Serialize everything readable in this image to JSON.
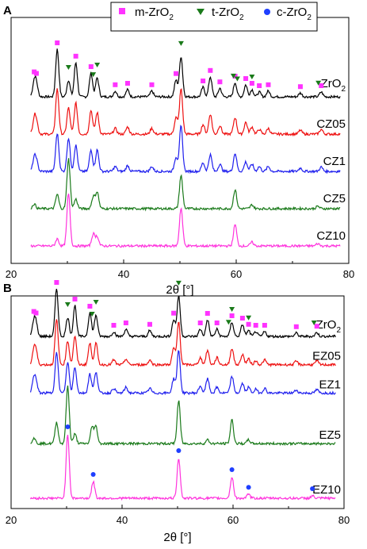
{
  "legend": [
    {
      "label": "m-ZrO",
      "sub": "2",
      "marker": "square",
      "color": "#ff33ff"
    },
    {
      "label": "t-ZrO",
      "sub": "2",
      "marker": "triangle-down",
      "color": "#1a7a1a"
    },
    {
      "label": "c-ZrO",
      "sub": "2",
      "marker": "circle",
      "color": "#1f3fff"
    }
  ],
  "chart_data": [
    {
      "panel": "A",
      "type": "line",
      "xlabel": "2θ [°]",
      "xlim": [
        20,
        80
      ],
      "xticks": [
        20,
        40,
        60,
        80
      ],
      "series": [
        {
          "name": "ZrO",
          "sub": "2",
          "color": "#000000",
          "offset": 4,
          "scale": 1.0,
          "peaks": [
            [
              24.1,
              0.3
            ],
            [
              24.5,
              0.25
            ],
            [
              28.2,
              1.0
            ],
            [
              30.2,
              0.35
            ],
            [
              31.5,
              0.72
            ],
            [
              34.2,
              0.5
            ],
            [
              35.3,
              0.4
            ],
            [
              38.5,
              0.12
            ],
            [
              40.7,
              0.15
            ],
            [
              45.0,
              0.12
            ],
            [
              49.3,
              0.35
            ],
            [
              50.2,
              0.85
            ],
            [
              54.1,
              0.2
            ],
            [
              55.4,
              0.42
            ],
            [
              57.1,
              0.18
            ],
            [
              59.8,
              0.3
            ],
            [
              61.7,
              0.25
            ],
            [
              62.8,
              0.15
            ],
            [
              64.1,
              0.1
            ],
            [
              65.7,
              0.12
            ],
            [
              71.4,
              0.08
            ],
            [
              75.1,
              0.1
            ]
          ]
        },
        {
          "name": "CZ05",
          "color": "#ee1111",
          "offset": 3,
          "scale": 1.0,
          "peaks": [
            [
              24.1,
              0.3
            ],
            [
              24.5,
              0.25
            ],
            [
              28.2,
              0.95
            ],
            [
              30.2,
              0.55
            ],
            [
              31.5,
              0.65
            ],
            [
              34.2,
              0.5
            ],
            [
              35.3,
              0.45
            ],
            [
              38.5,
              0.12
            ],
            [
              40.7,
              0.15
            ],
            [
              45.0,
              0.12
            ],
            [
              49.3,
              0.35
            ],
            [
              50.2,
              0.95
            ],
            [
              54.1,
              0.2
            ],
            [
              55.4,
              0.42
            ],
            [
              57.1,
              0.18
            ],
            [
              59.8,
              0.35
            ],
            [
              61.7,
              0.25
            ],
            [
              62.8,
              0.15
            ],
            [
              64.1,
              0.1
            ],
            [
              65.7,
              0.12
            ],
            [
              71.4,
              0.08
            ],
            [
              75.1,
              0.1
            ]
          ]
        },
        {
          "name": "CZ1",
          "color": "#1f1fee",
          "offset": 2,
          "scale": 1.0,
          "peaks": [
            [
              24.1,
              0.25
            ],
            [
              24.5,
              0.2
            ],
            [
              28.2,
              0.8
            ],
            [
              30.2,
              0.7
            ],
            [
              31.5,
              0.55
            ],
            [
              34.2,
              0.45
            ],
            [
              35.3,
              0.45
            ],
            [
              38.5,
              0.1
            ],
            [
              40.7,
              0.12
            ],
            [
              45.0,
              0.1
            ],
            [
              49.3,
              0.3
            ],
            [
              50.2,
              0.95
            ],
            [
              54.1,
              0.18
            ],
            [
              55.4,
              0.35
            ],
            [
              57.1,
              0.15
            ],
            [
              59.8,
              0.38
            ],
            [
              61.7,
              0.2
            ],
            [
              62.8,
              0.15
            ],
            [
              64.1,
              0.1
            ],
            [
              65.7,
              0.1
            ],
            [
              71.4,
              0.07
            ],
            [
              75.1,
              0.09
            ]
          ]
        },
        {
          "name": "CZ5",
          "color": "#1a7a1a",
          "offset": 1,
          "scale": 1.0,
          "peaks": [
            [
              24.1,
              0.1
            ],
            [
              28.2,
              0.3
            ],
            [
              30.2,
              1.05
            ],
            [
              31.5,
              0.2
            ],
            [
              34.6,
              0.25
            ],
            [
              35.3,
              0.35
            ],
            [
              50.2,
              0.7
            ],
            [
              59.8,
              0.4
            ],
            [
              62.8,
              0.08
            ],
            [
              74.5,
              0.05
            ]
          ]
        },
        {
          "name": "CZ10",
          "color": "#ff33dd",
          "offset": 0,
          "scale": 1.0,
          "peaks": [
            [
              28.2,
              0.15
            ],
            [
              30.2,
              1.1
            ],
            [
              34.6,
              0.25
            ],
            [
              35.3,
              0.2
            ],
            [
              50.2,
              0.8
            ],
            [
              59.8,
              0.45
            ],
            [
              62.8,
              0.08
            ],
            [
              74.5,
              0.05
            ]
          ]
        }
      ],
      "markers": {
        "m": [
          24.1,
          24.5,
          28.2,
          31.5,
          34.2,
          38.5,
          40.7,
          45.0,
          49.3,
          54.1,
          55.4,
          57.1,
          59.8,
          61.7,
          62.8,
          64.1,
          65.7,
          71.4,
          75.1
        ],
        "t": [
          30.2,
          34.6,
          35.3,
          50.2,
          59.5,
          60.2,
          62.8,
          74.6
        ]
      }
    },
    {
      "panel": "B",
      "type": "line",
      "xlabel": "2θ [°]",
      "xlim": [
        20,
        80
      ],
      "xticks": [
        20,
        40,
        60,
        80
      ],
      "series": [
        {
          "name": "ZrO",
          "sub": "2",
          "color": "#000000",
          "offset": 4,
          "scale": 1.0,
          "peaks": [
            [
              24.1,
              0.3
            ],
            [
              24.5,
              0.25
            ],
            [
              28.2,
              1.0
            ],
            [
              30.2,
              0.4
            ],
            [
              31.5,
              0.65
            ],
            [
              34.2,
              0.5
            ],
            [
              35.3,
              0.45
            ],
            [
              38.5,
              0.1
            ],
            [
              40.7,
              0.15
            ],
            [
              45.0,
              0.12
            ],
            [
              49.3,
              0.35
            ],
            [
              50.2,
              0.85
            ],
            [
              54.1,
              0.15
            ],
            [
              55.4,
              0.35
            ],
            [
              57.1,
              0.15
            ],
            [
              59.8,
              0.3
            ],
            [
              61.7,
              0.25
            ],
            [
              62.8,
              0.12
            ],
            [
              64.1,
              0.1
            ],
            [
              65.7,
              0.1
            ],
            [
              71.4,
              0.07
            ],
            [
              75.1,
              0.08
            ]
          ]
        },
        {
          "name": "EZ05",
          "color": "#ee1111",
          "offset": 3.3,
          "scale": 1.0,
          "peaks": [
            [
              24.1,
              0.3
            ],
            [
              24.5,
              0.25
            ],
            [
              28.2,
              0.95
            ],
            [
              30.2,
              0.5
            ],
            [
              31.5,
              0.6
            ],
            [
              34.2,
              0.45
            ],
            [
              35.3,
              0.45
            ],
            [
              38.5,
              0.1
            ],
            [
              40.7,
              0.12
            ],
            [
              45.0,
              0.1
            ],
            [
              49.3,
              0.35
            ],
            [
              50.2,
              0.9
            ],
            [
              54.1,
              0.15
            ],
            [
              55.4,
              0.3
            ],
            [
              57.1,
              0.15
            ],
            [
              59.8,
              0.35
            ],
            [
              61.7,
              0.22
            ],
            [
              62.8,
              0.12
            ],
            [
              64.1,
              0.08
            ],
            [
              65.7,
              0.1
            ],
            [
              71.4,
              0.07
            ],
            [
              75.1,
              0.08
            ]
          ]
        },
        {
          "name": "EZ1",
          "color": "#1f1fee",
          "offset": 2.6,
          "scale": 1.0,
          "peaks": [
            [
              24.1,
              0.3
            ],
            [
              24.5,
              0.2
            ],
            [
              28.2,
              0.85
            ],
            [
              30.2,
              0.65
            ],
            [
              31.5,
              0.55
            ],
            [
              34.2,
              0.4
            ],
            [
              35.3,
              0.45
            ],
            [
              38.5,
              0.1
            ],
            [
              40.7,
              0.12
            ],
            [
              45.0,
              0.1
            ],
            [
              49.3,
              0.3
            ],
            [
              50.2,
              0.9
            ],
            [
              54.1,
              0.15
            ],
            [
              55.4,
              0.3
            ],
            [
              57.1,
              0.12
            ],
            [
              59.8,
              0.35
            ],
            [
              61.7,
              0.2
            ],
            [
              62.8,
              0.12
            ],
            [
              64.1,
              0.08
            ],
            [
              65.7,
              0.1
            ],
            [
              71.4,
              0.06
            ],
            [
              75.1,
              0.07
            ]
          ]
        },
        {
          "name": "EZ5",
          "color": "#1a7a1a",
          "offset": 1.35,
          "scale": 1.0,
          "peaks": [
            [
              24.1,
              0.12
            ],
            [
              28.2,
              0.45
            ],
            [
              30.2,
              1.2
            ],
            [
              31.5,
              0.2
            ],
            [
              34.6,
              0.35
            ],
            [
              35.3,
              0.35
            ],
            [
              50.2,
              0.9
            ],
            [
              55.4,
              0.08
            ],
            [
              59.8,
              0.5
            ],
            [
              62.8,
              0.08
            ]
          ]
        },
        {
          "name": "EZ10",
          "color": "#ff33dd",
          "offset": 0,
          "scale": 1.0,
          "peaks": [
            [
              30.2,
              1.35
            ],
            [
              34.8,
              0.35
            ],
            [
              50.2,
              0.85
            ],
            [
              59.8,
              0.45
            ],
            [
              62.8,
              0.08
            ],
            [
              74.3,
              0.05
            ]
          ]
        }
      ],
      "markers": {
        "m": [
          24.1,
          24.5,
          28.2,
          31.5,
          34.2,
          38.5,
          40.7,
          45.0,
          49.3,
          54.1,
          55.4,
          57.1,
          59.8,
          61.7,
          62.8,
          64.1,
          65.7,
          71.4,
          75.1
        ],
        "t": [
          30.2,
          34.6,
          35.3,
          50.2,
          59.2,
          59.8,
          62.8,
          74.6
        ],
        "c": [
          30.2,
          34.8,
          50.2,
          59.8,
          62.8,
          74.3
        ]
      }
    }
  ]
}
